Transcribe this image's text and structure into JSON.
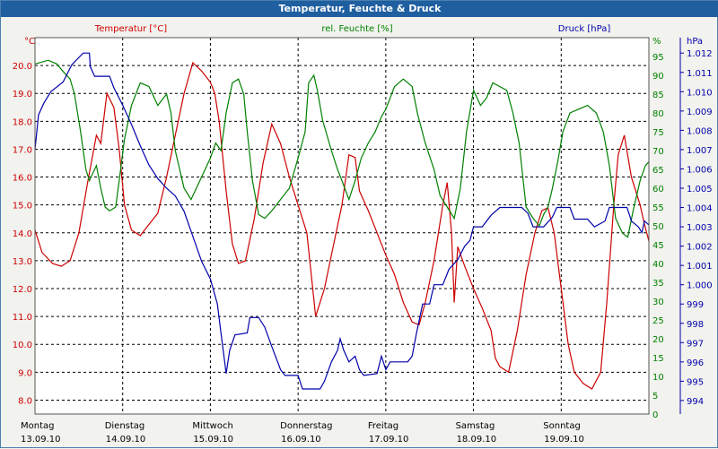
{
  "title": "Temperatur, Feuchte & Druck",
  "chart_data": {
    "type": "line",
    "title": "Temperatur, Feuchte & Druck",
    "grid": true,
    "colors": {
      "temperature": "#cc0000",
      "humidity": "#008000",
      "pressure": "#0000aa",
      "titlebar": "#1f5fa0"
    },
    "axes": {
      "left": {
        "unit": "°C",
        "ylim": [
          7.5,
          21.0
        ],
        "ticks": [
          "8.0",
          "9.0",
          "10.0",
          "11.0",
          "12.0",
          "13.0",
          "14.0",
          "15.0",
          "16.0",
          "17.0",
          "18.0",
          "19.0",
          "20.0"
        ]
      },
      "right1": {
        "unit": "%",
        "ylim": [
          0,
          100
        ],
        "ticks": [
          "0",
          "5",
          "10",
          "15",
          "20",
          "25",
          "30",
          "35",
          "40",
          "45",
          "50",
          "55",
          "60",
          "65",
          "70",
          "75",
          "80",
          "85",
          "90",
          "95"
        ]
      },
      "right2": {
        "unit": "hPa",
        "ylim": [
          993.3,
          1012.8
        ],
        "ticks": [
          "994",
          "995",
          "996",
          "997",
          "998",
          "999",
          "1.000",
          "1.001",
          "1.002",
          "1.003",
          "1.004",
          "1.005",
          "1.006",
          "1.007",
          "1.008",
          "1.009",
          "1.010",
          "1.011",
          "1.012"
        ]
      }
    },
    "x_labels": [
      {
        "day": "Montag",
        "date": "13.09.10"
      },
      {
        "day": "Dienstag",
        "date": "14.09.10"
      },
      {
        "day": "Mittwoch",
        "date": "15.09.10"
      },
      {
        "day": "Donnerstag",
        "date": "16.09.10"
      },
      {
        "day": "Freitag",
        "date": "17.09.10"
      },
      {
        "day": "Samstag",
        "date": "18.09.10"
      },
      {
        "day": "Sonntag",
        "date": "19.09.10"
      }
    ],
    "x_unit": "days since Montag 13.09.10 00:00",
    "xlim": [
      0,
      7.0
    ],
    "series": [
      {
        "name": "Temperatur [°C]",
        "key": "temperature",
        "axis": "left",
        "points": [
          [
            0.0,
            14.1
          ],
          [
            0.08,
            13.3
          ],
          [
            0.2,
            12.9
          ],
          [
            0.3,
            12.8
          ],
          [
            0.4,
            13.0
          ],
          [
            0.5,
            14.0
          ],
          [
            0.6,
            15.8
          ],
          [
            0.7,
            17.5
          ],
          [
            0.75,
            17.2
          ],
          [
            0.82,
            19.0
          ],
          [
            0.9,
            18.5
          ],
          [
            0.96,
            17.0
          ],
          [
            1.02,
            15.0
          ],
          [
            1.1,
            14.1
          ],
          [
            1.2,
            13.9
          ],
          [
            1.3,
            14.3
          ],
          [
            1.4,
            14.7
          ],
          [
            1.5,
            16.0
          ],
          [
            1.6,
            17.5
          ],
          [
            1.7,
            19.0
          ],
          [
            1.8,
            20.1
          ],
          [
            1.9,
            19.8
          ],
          [
            2.0,
            19.4
          ],
          [
            2.05,
            19.0
          ],
          [
            2.1,
            18.0
          ],
          [
            2.18,
            15.5
          ],
          [
            2.25,
            13.6
          ],
          [
            2.32,
            12.9
          ],
          [
            2.4,
            13.0
          ],
          [
            2.5,
            14.5
          ],
          [
            2.6,
            16.5
          ],
          [
            2.7,
            17.9
          ],
          [
            2.8,
            17.2
          ],
          [
            2.9,
            16.0
          ],
          [
            3.0,
            15.0
          ],
          [
            3.1,
            14.0
          ],
          [
            3.15,
            12.5
          ],
          [
            3.2,
            11.0
          ],
          [
            3.3,
            12.0
          ],
          [
            3.4,
            13.5
          ],
          [
            3.5,
            15.0
          ],
          [
            3.58,
            16.8
          ],
          [
            3.65,
            16.7
          ],
          [
            3.7,
            15.5
          ],
          [
            3.8,
            14.8
          ],
          [
            3.9,
            14.0
          ],
          [
            4.0,
            13.2
          ],
          [
            4.1,
            12.5
          ],
          [
            4.2,
            11.5
          ],
          [
            4.3,
            10.8
          ],
          [
            4.38,
            10.7
          ],
          [
            4.45,
            11.5
          ],
          [
            4.55,
            13.0
          ],
          [
            4.65,
            15.0
          ],
          [
            4.7,
            15.8
          ],
          [
            4.75,
            14.0
          ],
          [
            4.78,
            11.5
          ],
          [
            4.82,
            13.5
          ],
          [
            4.9,
            12.8
          ],
          [
            5.0,
            12.0
          ],
          [
            5.1,
            11.3
          ],
          [
            5.2,
            10.5
          ],
          [
            5.25,
            9.5
          ],
          [
            5.3,
            9.2
          ],
          [
            5.4,
            9.0
          ],
          [
            5.5,
            10.5
          ],
          [
            5.6,
            12.5
          ],
          [
            5.7,
            14.0
          ],
          [
            5.78,
            14.8
          ],
          [
            5.85,
            14.9
          ],
          [
            5.92,
            14.0
          ],
          [
            6.0,
            12.0
          ],
          [
            6.08,
            10.0
          ],
          [
            6.15,
            9.0
          ],
          [
            6.25,
            8.6
          ],
          [
            6.35,
            8.4
          ],
          [
            6.45,
            9.0
          ],
          [
            6.52,
            11.5
          ],
          [
            6.6,
            15.0
          ],
          [
            6.65,
            16.8
          ],
          [
            6.72,
            17.5
          ],
          [
            6.8,
            16.0
          ],
          [
            6.9,
            15.0
          ],
          [
            6.95,
            14.3
          ],
          [
            7.0,
            13.7
          ]
        ]
      },
      {
        "name": "rel. Feuchte [%]",
        "key": "humidity",
        "axis": "right1",
        "points": [
          [
            0.0,
            93
          ],
          [
            0.15,
            94
          ],
          [
            0.25,
            93
          ],
          [
            0.32,
            91
          ],
          [
            0.4,
            89
          ],
          [
            0.45,
            85
          ],
          [
            0.52,
            75
          ],
          [
            0.58,
            65
          ],
          [
            0.62,
            62
          ],
          [
            0.7,
            66
          ],
          [
            0.75,
            60
          ],
          [
            0.8,
            55
          ],
          [
            0.85,
            54
          ],
          [
            0.92,
            55
          ],
          [
            0.96,
            62
          ],
          [
            1.02,
            73
          ],
          [
            1.1,
            82
          ],
          [
            1.2,
            88
          ],
          [
            1.3,
            87
          ],
          [
            1.4,
            82
          ],
          [
            1.5,
            85
          ],
          [
            1.55,
            80
          ],
          [
            1.6,
            70
          ],
          [
            1.7,
            60
          ],
          [
            1.78,
            57
          ],
          [
            1.88,
            62
          ],
          [
            2.0,
            68
          ],
          [
            2.06,
            72
          ],
          [
            2.12,
            70
          ],
          [
            2.18,
            80
          ],
          [
            2.25,
            88
          ],
          [
            2.32,
            89
          ],
          [
            2.38,
            85
          ],
          [
            2.42,
            75
          ],
          [
            2.48,
            62
          ],
          [
            2.55,
            53
          ],
          [
            2.62,
            52
          ],
          [
            2.7,
            54
          ],
          [
            2.8,
            57
          ],
          [
            2.9,
            60
          ],
          [
            3.0,
            68
          ],
          [
            3.08,
            75
          ],
          [
            3.12,
            88
          ],
          [
            3.18,
            90
          ],
          [
            3.22,
            86
          ],
          [
            3.28,
            78
          ],
          [
            3.38,
            70
          ],
          [
            3.45,
            65
          ],
          [
            3.5,
            62
          ],
          [
            3.58,
            57
          ],
          [
            3.65,
            62
          ],
          [
            3.72,
            68
          ],
          [
            3.8,
            72
          ],
          [
            3.88,
            75
          ],
          [
            3.95,
            79
          ],
          [
            4.0,
            81
          ],
          [
            4.1,
            87
          ],
          [
            4.2,
            89
          ],
          [
            4.3,
            87
          ],
          [
            4.36,
            80
          ],
          [
            4.45,
            72
          ],
          [
            4.55,
            65
          ],
          [
            4.62,
            58
          ],
          [
            4.7,
            55
          ],
          [
            4.78,
            52
          ],
          [
            4.85,
            60
          ],
          [
            4.92,
            75
          ],
          [
            5.0,
            86
          ],
          [
            5.08,
            82
          ],
          [
            5.15,
            84
          ],
          [
            5.22,
            88
          ],
          [
            5.3,
            87
          ],
          [
            5.38,
            86
          ],
          [
            5.45,
            80
          ],
          [
            5.52,
            72
          ],
          [
            5.6,
            55
          ],
          [
            5.68,
            52
          ],
          [
            5.75,
            50
          ],
          [
            5.8,
            53
          ],
          [
            5.85,
            55
          ],
          [
            5.9,
            60
          ],
          [
            5.96,
            67
          ],
          [
            6.02,
            75
          ],
          [
            6.1,
            80
          ],
          [
            6.2,
            81
          ],
          [
            6.3,
            82
          ],
          [
            6.4,
            80
          ],
          [
            6.48,
            75
          ],
          [
            6.55,
            66
          ],
          [
            6.62,
            52
          ],
          [
            6.7,
            48
          ],
          [
            6.76,
            47
          ],
          [
            6.82,
            54
          ],
          [
            6.9,
            62
          ],
          [
            6.96,
            66
          ],
          [
            7.0,
            67
          ]
        ]
      },
      {
        "name": "Druck [hPa]",
        "key": "pressure",
        "axis": "right2",
        "points": [
          [
            0.0,
            1007.0
          ],
          [
            0.04,
            1008.8
          ],
          [
            0.1,
            1009.4
          ],
          [
            0.18,
            1010.0
          ],
          [
            0.32,
            1010.5
          ],
          [
            0.42,
            1011.4
          ],
          [
            0.55,
            1012.0
          ],
          [
            0.62,
            1012.0
          ],
          [
            0.63,
            1011.3
          ],
          [
            0.68,
            1010.8
          ],
          [
            0.85,
            1010.8
          ],
          [
            0.9,
            1010.2
          ],
          [
            1.0,
            1009.3
          ],
          [
            1.1,
            1008.3
          ],
          [
            1.2,
            1007.2
          ],
          [
            1.3,
            1006.2
          ],
          [
            1.4,
            1005.5
          ],
          [
            1.5,
            1005.0
          ],
          [
            1.6,
            1004.6
          ],
          [
            1.7,
            1003.8
          ],
          [
            1.8,
            1002.5
          ],
          [
            1.9,
            1001.2
          ],
          [
            2.0,
            1000.3
          ],
          [
            2.08,
            999.0
          ],
          [
            2.12,
            997.5
          ],
          [
            2.18,
            995.4
          ],
          [
            2.22,
            996.6
          ],
          [
            2.28,
            997.4
          ],
          [
            2.42,
            997.5
          ],
          [
            2.45,
            998.3
          ],
          [
            2.55,
            998.3
          ],
          [
            2.62,
            997.8
          ],
          [
            2.7,
            996.8
          ],
          [
            2.8,
            995.6
          ],
          [
            2.85,
            995.3
          ],
          [
            3.0,
            995.3
          ],
          [
            3.05,
            994.6
          ],
          [
            3.25,
            994.6
          ],
          [
            3.3,
            995.0
          ],
          [
            3.38,
            996.0
          ],
          [
            3.45,
            996.6
          ],
          [
            3.48,
            997.2
          ],
          [
            3.52,
            996.6
          ],
          [
            3.58,
            996.0
          ],
          [
            3.65,
            996.3
          ],
          [
            3.7,
            995.6
          ],
          [
            3.75,
            995.3
          ],
          [
            3.9,
            995.4
          ],
          [
            3.95,
            996.3
          ],
          [
            4.0,
            995.6
          ],
          [
            4.05,
            996.0
          ],
          [
            4.25,
            996.0
          ],
          [
            4.3,
            996.3
          ],
          [
            4.35,
            997.5
          ],
          [
            4.42,
            999.0
          ],
          [
            4.5,
            999.0
          ],
          [
            4.55,
            1000.0
          ],
          [
            4.65,
            1000.0
          ],
          [
            4.72,
            1000.8
          ],
          [
            4.82,
            1001.3
          ],
          [
            4.9,
            1002.0
          ],
          [
            4.96,
            1002.3
          ],
          [
            5.0,
            1003.0
          ],
          [
            5.1,
            1003.0
          ],
          [
            5.2,
            1003.6
          ],
          [
            5.3,
            1004.0
          ],
          [
            5.55,
            1004.0
          ],
          [
            5.62,
            1003.7
          ],
          [
            5.68,
            1003.0
          ],
          [
            5.8,
            1003.0
          ],
          [
            5.9,
            1003.5
          ],
          [
            5.95,
            1004.0
          ],
          [
            6.1,
            1004.0
          ],
          [
            6.15,
            1003.4
          ],
          [
            6.3,
            1003.4
          ],
          [
            6.38,
            1003.0
          ],
          [
            6.5,
            1003.3
          ],
          [
            6.55,
            1004.0
          ],
          [
            6.75,
            1004.0
          ],
          [
            6.8,
            1003.3
          ],
          [
            6.88,
            1003.0
          ],
          [
            6.92,
            1002.7
          ],
          [
            6.95,
            1003.3
          ],
          [
            7.0,
            1003.1
          ]
        ]
      }
    ]
  }
}
